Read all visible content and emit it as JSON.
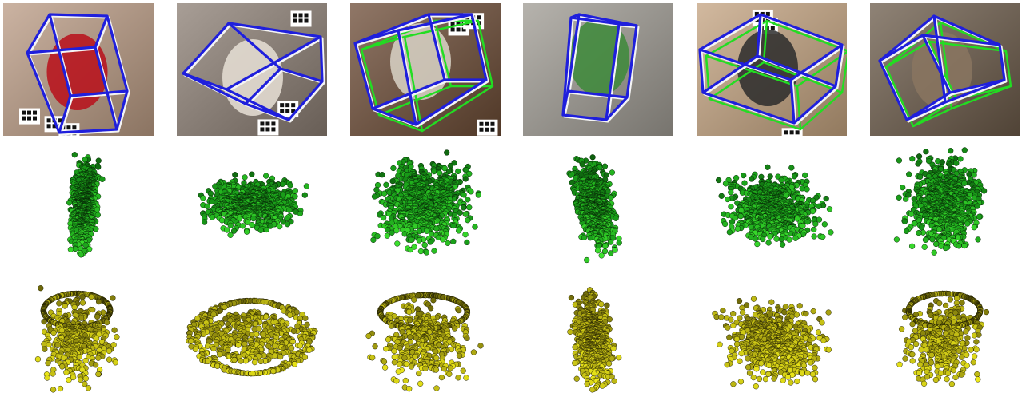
{
  "figure": {
    "rows": [
      "photo-with-boxes",
      "green-point-cloud",
      "yellow-point-cloud"
    ],
    "box_colors": {
      "primary": "#1f1fdc",
      "secondary": "#22dd22",
      "highlight": "#f4f4f4"
    },
    "point_colors": {
      "green": {
        "light": "#3fe62f",
        "mid": "#1aa21a",
        "dark": "#0b4d0b"
      },
      "yellow": {
        "light": "#f2ee1a",
        "mid": "#b4ae12",
        "dark": "#4e4a06"
      }
    },
    "columns": [
      {
        "object": "can",
        "scene": "laptop-table",
        "photo_bg": "#b99a83",
        "object_color": "#b80f1a",
        "has_secondary_box": false
      },
      {
        "object": "bowl",
        "scene": "tag-table",
        "photo_bg": "#8b7d73",
        "object_color": "#e7e0d6",
        "has_secondary_box": false
      },
      {
        "object": "mug",
        "scene": "tag-table",
        "photo_bg": "#6b4a34",
        "object_color": "#d9d3c7",
        "has_secondary_box": true
      },
      {
        "object": "bottle",
        "scene": "desk",
        "photo_bg": "#9e9a92",
        "object_color": "#3d8a3a",
        "has_secondary_box": false
      },
      {
        "object": "laptop",
        "scene": "tag-table",
        "photo_bg": "#c3a27f",
        "object_color": "#2b2b2b",
        "has_secondary_box": true
      },
      {
        "object": "mug",
        "scene": "table",
        "photo_bg": "#6a5948",
        "object_color": "#8a7660",
        "has_secondary_box": true
      }
    ]
  }
}
